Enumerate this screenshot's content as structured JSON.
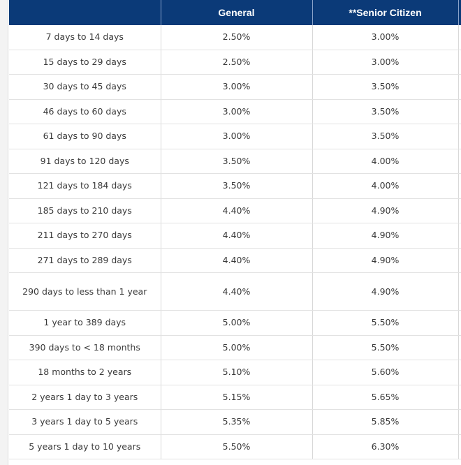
{
  "table": {
    "headers": [
      "",
      "General",
      "**Senior Citizen"
    ],
    "rows": [
      {
        "tenure": "7 days to 14 days",
        "general": "2.50%",
        "senior": "3.00%"
      },
      {
        "tenure": "15 days to 29 days",
        "general": "2.50%",
        "senior": "3.00%"
      },
      {
        "tenure": "30 days to 45 days",
        "general": "3.00%",
        "senior": "3.50%"
      },
      {
        "tenure": "46 days to 60 days",
        "general": "3.00%",
        "senior": "3.50%"
      },
      {
        "tenure": "61 days to 90 days",
        "general": "3.00%",
        "senior": "3.50%"
      },
      {
        "tenure": "91 days to 120 days",
        "general": "3.50%",
        "senior": "4.00%"
      },
      {
        "tenure": "121 days to 184 days",
        "general": "3.50%",
        "senior": "4.00%"
      },
      {
        "tenure": "185 days to 210 days",
        "general": "4.40%",
        "senior": "4.90%"
      },
      {
        "tenure": "211 days to 270 days",
        "general": "4.40%",
        "senior": "4.90%"
      },
      {
        "tenure": "271 days to 289 days",
        "general": "4.40%",
        "senior": "4.90%"
      },
      {
        "tenure": "290 days to less than 1 year",
        "general": "4.40%",
        "senior": "4.90%"
      },
      {
        "tenure": "1 year to 389 days",
        "general": "5.00%",
        "senior": "5.50%"
      },
      {
        "tenure": "390 days to < 18 months",
        "general": "5.00%",
        "senior": "5.50%"
      },
      {
        "tenure": "18 months to 2 years",
        "general": "5.10%",
        "senior": "5.60%"
      },
      {
        "tenure": "2 years 1 day to 3 years",
        "general": "5.15%",
        "senior": "5.65%"
      },
      {
        "tenure": "3 years 1 day to 5 years",
        "general": "5.35%",
        "senior": "5.85%"
      },
      {
        "tenure": "5 years 1 day to 10 years",
        "general": "5.50%",
        "senior": "6.30%"
      }
    ]
  },
  "colors": {
    "header_bg": "#0b3a78",
    "header_text": "#ffffff",
    "cell_text": "#3a3a3a",
    "grid_line": "#d8d8d8"
  }
}
